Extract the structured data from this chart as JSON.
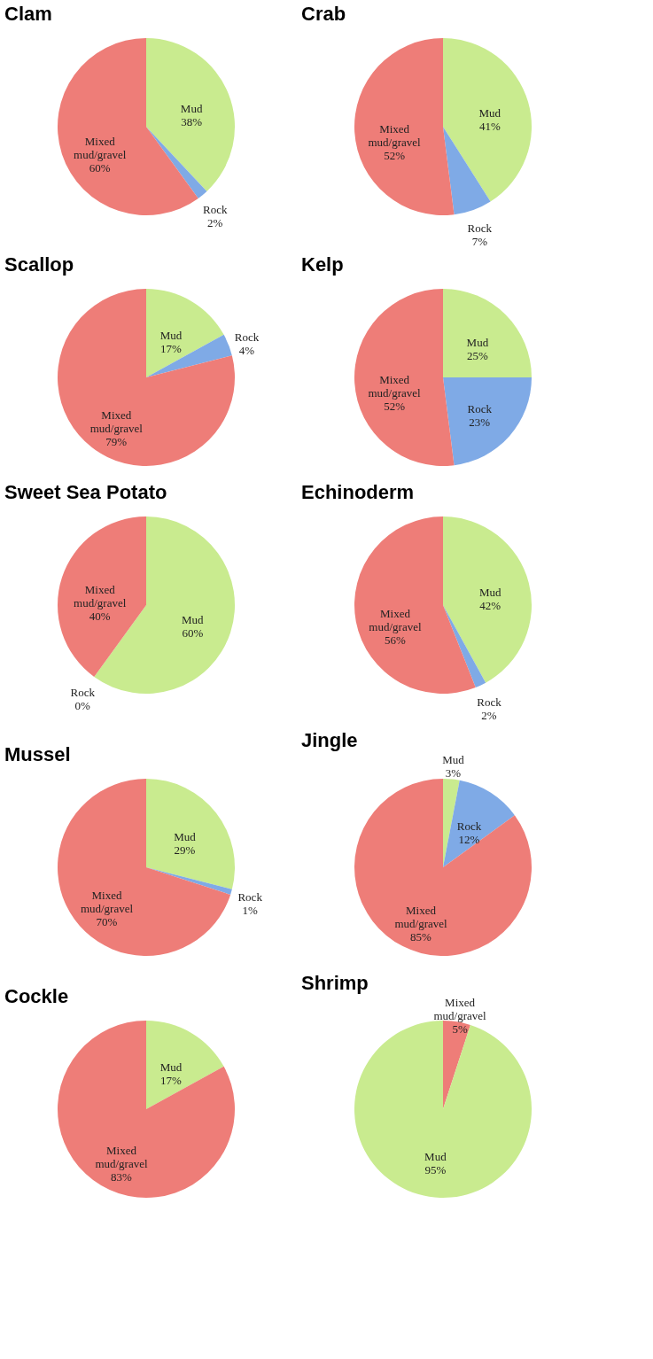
{
  "chart_data": [
    {
      "type": "pie",
      "title": "Clam",
      "categories": [
        "Mud",
        "Rock",
        "Mixed mud/gravel"
      ],
      "values": [
        38,
        2,
        60
      ],
      "value_labels": [
        "38%",
        "2%",
        "60%"
      ],
      "colors": [
        "#c9eb8f",
        "#7faae6",
        "#ee7d78"
      ]
    },
    {
      "type": "pie",
      "title": "Crab",
      "categories": [
        "Mud",
        "Rock",
        "Mixed mud/gravel"
      ],
      "values": [
        41,
        7,
        52
      ],
      "value_labels": [
        "41%",
        "7%",
        "52%"
      ],
      "colors": [
        "#c9eb8f",
        "#7faae6",
        "#ee7d78"
      ]
    },
    {
      "type": "pie",
      "title": "Scallop",
      "categories": [
        "Mud",
        "Rock",
        "Mixed mud/gravel"
      ],
      "values": [
        17,
        4,
        79
      ],
      "value_labels": [
        "17%",
        "4%",
        "79%"
      ],
      "colors": [
        "#c9eb8f",
        "#7faae6",
        "#ee7d78"
      ]
    },
    {
      "type": "pie",
      "title": "Kelp",
      "categories": [
        "Mud",
        "Rock",
        "Mixed mud/gravel"
      ],
      "values": [
        25,
        23,
        52
      ],
      "value_labels": [
        "25%",
        "23%",
        "52%"
      ],
      "colors": [
        "#c9eb8f",
        "#7faae6",
        "#ee7d78"
      ]
    },
    {
      "type": "pie",
      "title": "Sweet Sea Potato",
      "categories": [
        "Mud",
        "Rock",
        "Mixed mud/gravel"
      ],
      "values": [
        60,
        0,
        40
      ],
      "value_labels": [
        "60%",
        "0%",
        "40%"
      ],
      "colors": [
        "#c9eb8f",
        "#7faae6",
        "#ee7d78"
      ]
    },
    {
      "type": "pie",
      "title": "Echinoderm",
      "categories": [
        "Mud",
        "Rock",
        "Mixed mud/gravel"
      ],
      "values": [
        42,
        2,
        56
      ],
      "value_labels": [
        "42%",
        "2%",
        "56%"
      ],
      "colors": [
        "#c9eb8f",
        "#7faae6",
        "#ee7d78"
      ]
    },
    {
      "type": "pie",
      "title": "Mussel",
      "categories": [
        "Mud",
        "Rock",
        "Mixed mud/gravel"
      ],
      "values": [
        29,
        1,
        70
      ],
      "value_labels": [
        "29%",
        "1%",
        "70%"
      ],
      "colors": [
        "#c9eb8f",
        "#7faae6",
        "#ee7d78"
      ]
    },
    {
      "type": "pie",
      "title": "Jingle",
      "categories": [
        "Mud",
        "Rock",
        "Mixed mud/gravel"
      ],
      "values": [
        3,
        12,
        85
      ],
      "value_labels": [
        "3%",
        "12%",
        "85%"
      ],
      "colors": [
        "#c9eb8f",
        "#7faae6",
        "#ee7d78"
      ]
    },
    {
      "type": "pie",
      "title": "Cockle",
      "categories": [
        "Mud",
        "Mixed mud/gravel"
      ],
      "values": [
        17,
        83
      ],
      "value_labels": [
        "17%",
        "83%"
      ],
      "colors": [
        "#c9eb8f",
        "#ee7d78"
      ]
    },
    {
      "type": "pie",
      "title": "Shrimp",
      "categories": [
        "Mixed mud/gravel",
        "Mud"
      ],
      "values": [
        5,
        95
      ],
      "value_labels": [
        "5%",
        "95%"
      ],
      "colors": [
        "#ee7d78",
        "#c9eb8f"
      ]
    }
  ]
}
